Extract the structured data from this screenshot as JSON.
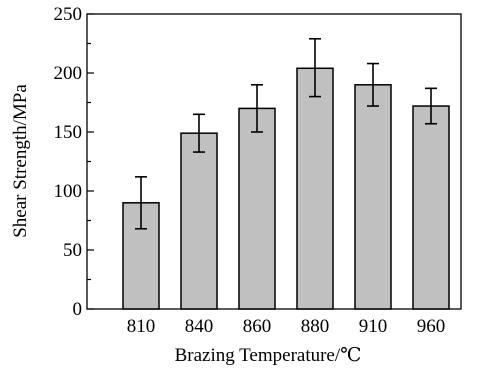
{
  "chart_data": {
    "type": "bar",
    "categories": [
      "810",
      "840",
      "860",
      "880",
      "910",
      "960"
    ],
    "values": [
      90,
      149,
      170,
      204,
      190,
      172
    ],
    "error_low": [
      68,
      133,
      150,
      180,
      172,
      157
    ],
    "error_high": [
      112,
      165,
      190,
      229,
      208,
      187
    ],
    "xlabel": "Brazing Temperature/℃",
    "ylabel": "Shear Strength/MPa",
    "ylim": [
      0,
      250
    ],
    "yticks": [
      0,
      50,
      100,
      150,
      200,
      250
    ],
    "grid": false,
    "bar_color": "#c0c0c0",
    "edge_color": "#000000"
  }
}
